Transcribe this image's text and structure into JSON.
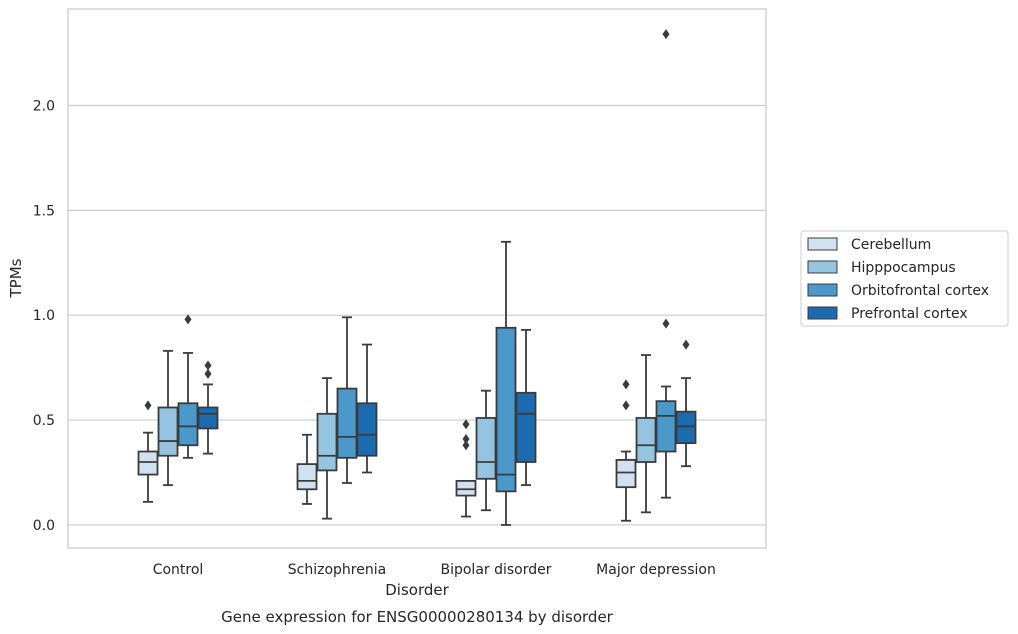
{
  "chart_data": {
    "type": "box",
    "title": "",
    "caption": "Gene expression for ENSG00000280134 by disorder",
    "xlabel": "Disorder",
    "ylabel": "TPMs",
    "ylim": [
      -0.11,
      2.46
    ],
    "yticks": [
      0.0,
      0.5,
      1.0,
      1.5,
      2.0
    ],
    "ytick_labels": [
      "0.0",
      "0.5",
      "1.0",
      "1.5",
      "2.0"
    ],
    "grid": "horizontal",
    "legend_position": "right",
    "categories": [
      "Control",
      "Schizophrenia",
      "Bipolar disorder",
      "Major depression"
    ],
    "series": [
      {
        "name": "Cerebellum",
        "color": "#d0e1f2",
        "boxes": [
          {
            "whisker_low": 0.11,
            "q1": 0.24,
            "median": 0.3,
            "q3": 0.35,
            "whisker_high": 0.44,
            "outliers": [
              0.57
            ]
          },
          {
            "whisker_low": 0.1,
            "q1": 0.17,
            "median": 0.21,
            "q3": 0.29,
            "whisker_high": 0.43,
            "outliers": []
          },
          {
            "whisker_low": 0.04,
            "q1": 0.14,
            "median": 0.17,
            "q3": 0.21,
            "whisker_high": 0.21,
            "outliers": [
              0.38,
              0.41,
              0.48
            ]
          },
          {
            "whisker_low": 0.02,
            "q1": 0.18,
            "median": 0.25,
            "q3": 0.31,
            "whisker_high": 0.35,
            "outliers": [
              0.57,
              0.67
            ]
          }
        ]
      },
      {
        "name": "Hipppocampus",
        "color": "#94c4df",
        "boxes": [
          {
            "whisker_low": 0.19,
            "q1": 0.33,
            "median": 0.4,
            "q3": 0.56,
            "whisker_high": 0.83,
            "outliers": []
          },
          {
            "whisker_low": 0.03,
            "q1": 0.26,
            "median": 0.33,
            "q3": 0.53,
            "whisker_high": 0.7,
            "outliers": []
          },
          {
            "whisker_low": 0.07,
            "q1": 0.22,
            "median": 0.3,
            "q3": 0.51,
            "whisker_high": 0.64,
            "outliers": []
          },
          {
            "whisker_low": 0.06,
            "q1": 0.3,
            "median": 0.38,
            "q3": 0.51,
            "whisker_high": 0.81,
            "outliers": []
          }
        ]
      },
      {
        "name": "Orbitofrontal cortex",
        "color": "#4b98ca",
        "boxes": [
          {
            "whisker_low": 0.32,
            "q1": 0.38,
            "median": 0.47,
            "q3": 0.58,
            "whisker_high": 0.82,
            "outliers": [
              0.98
            ]
          },
          {
            "whisker_low": 0.2,
            "q1": 0.32,
            "median": 0.42,
            "q3": 0.65,
            "whisker_high": 0.99,
            "outliers": []
          },
          {
            "whisker_low": 0.0,
            "q1": 0.16,
            "median": 0.24,
            "q3": 0.94,
            "whisker_high": 1.35,
            "outliers": []
          },
          {
            "whisker_low": 0.13,
            "q1": 0.35,
            "median": 0.52,
            "q3": 0.59,
            "whisker_high": 0.66,
            "outliers": [
              0.96,
              2.34
            ]
          }
        ]
      },
      {
        "name": "Prefrontal cortex",
        "color": "#1c6aaf",
        "boxes": [
          {
            "whisker_low": 0.34,
            "q1": 0.46,
            "median": 0.53,
            "q3": 0.56,
            "whisker_high": 0.67,
            "outliers": [
              0.72,
              0.76
            ]
          },
          {
            "whisker_low": 0.25,
            "q1": 0.33,
            "median": 0.43,
            "q3": 0.58,
            "whisker_high": 0.86,
            "outliers": []
          },
          {
            "whisker_low": 0.19,
            "q1": 0.3,
            "median": 0.53,
            "q3": 0.63,
            "whisker_high": 0.93,
            "outliers": []
          },
          {
            "whisker_low": 0.28,
            "q1": 0.39,
            "median": 0.47,
            "q3": 0.54,
            "whisker_high": 0.7,
            "outliers": [
              0.86
            ]
          }
        ]
      }
    ]
  }
}
